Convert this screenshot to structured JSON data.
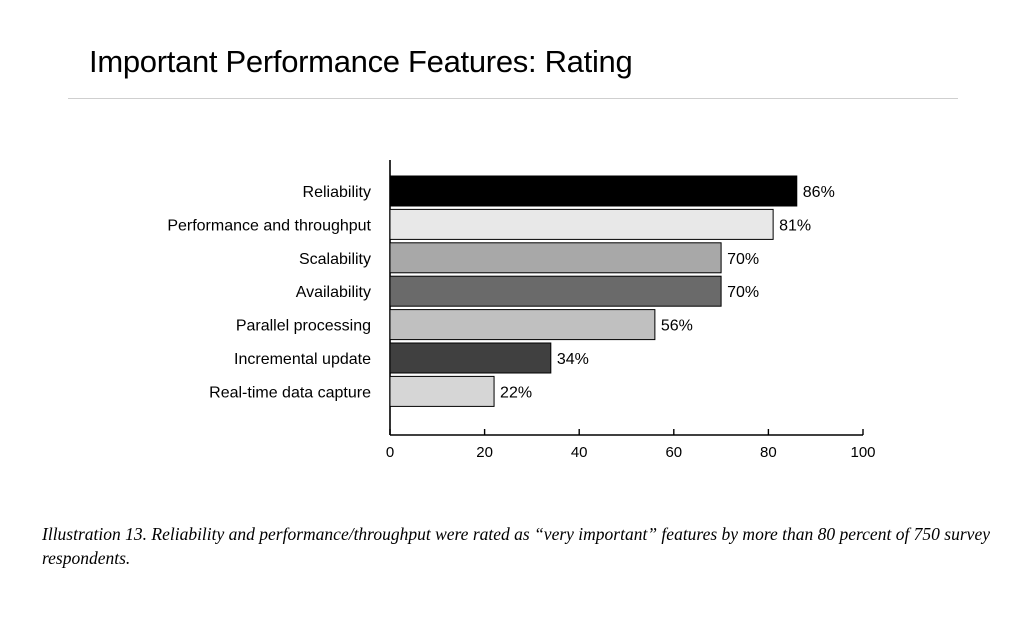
{
  "page": {
    "title": "Important Performance Features: Rating",
    "caption_lead": "Illustration 13.",
    "caption_body": "Reliability and performance/throughput were rated as “very important” features by more than 80 percent of 750 survey respondents."
  },
  "chart_data": {
    "type": "bar",
    "orientation": "horizontal",
    "title": "",
    "xlabel": "",
    "ylabel": "",
    "xlim": [
      0,
      100
    ],
    "x_ticks": [
      0,
      20,
      40,
      60,
      80,
      100
    ],
    "grid": false,
    "legend": "none",
    "categories": [
      "Reliability",
      "Performance and throughput",
      "Scalability",
      "Availability",
      "Parallel processing",
      "Incremental update",
      "Real-time data capture"
    ],
    "values": [
      86,
      81,
      70,
      70,
      56,
      34,
      22
    ],
    "data_labels": [
      "86%",
      "81%",
      "70%",
      "70%",
      "56%",
      "34%",
      "22%"
    ],
    "bar_colors": [
      "#000000",
      "#e8e8e8",
      "#a8a8a8",
      "#6a6a6a",
      "#c0c0c0",
      "#404040",
      "#d6d6d6"
    ]
  }
}
